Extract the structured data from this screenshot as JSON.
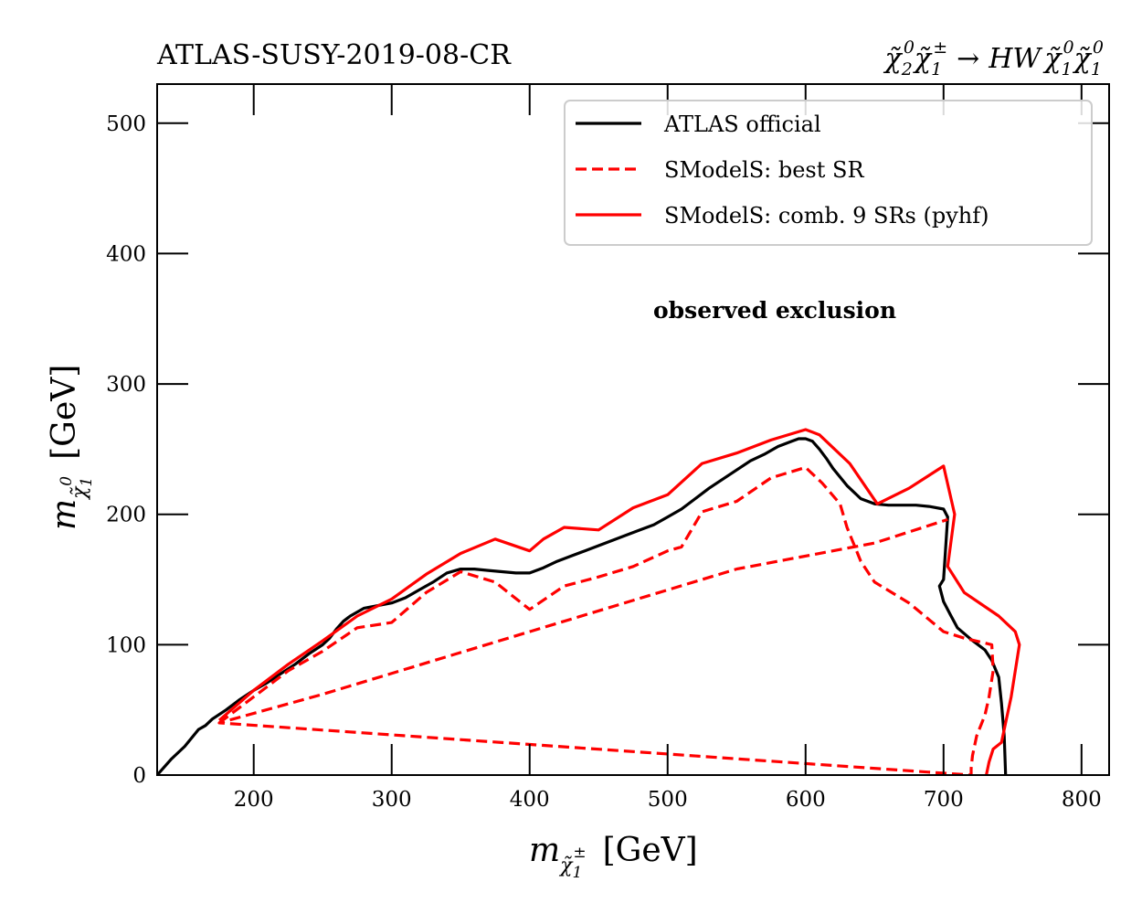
{
  "chart_data": {
    "type": "line",
    "title_left": "ATLAS-SUSY-2019-08-CR",
    "title_right": {
      "lhs_1": "χ̃",
      "lhs_1_sub": "2",
      "lhs_1_sup": "0",
      "lhs_2": "χ̃",
      "lhs_2_sub": "1",
      "lhs_2_sup": "±",
      "arrow": "→",
      "rhs_particles": "HW",
      "rhs_1": "χ̃",
      "rhs_1_sub": "1",
      "rhs_1_sup": "0",
      "rhs_2": "χ̃",
      "rhs_2_sub": "1",
      "rhs_2_sup": "0"
    },
    "xlabel": {
      "m": "m",
      "sub": "χ̃",
      "sub_sub": "1",
      "sup": "±",
      "unit": "[GeV]"
    },
    "ylabel": {
      "m": "m",
      "sub": "χ̃",
      "sub_sub": "1",
      "sup": "0",
      "unit": "[GeV]"
    },
    "xlim": [
      130,
      820
    ],
    "ylim": [
      0,
      530
    ],
    "xticks": [
      200,
      300,
      400,
      500,
      600,
      700,
      800
    ],
    "yticks": [
      0,
      100,
      200,
      300,
      400,
      500
    ],
    "annotation": "observed exclusion",
    "legend_position": "top-right",
    "series": [
      {
        "name": "ATLAS official",
        "color": "#000000",
        "style": "solid",
        "x": [
          130,
          140,
          150,
          160,
          165,
          170,
          180,
          190,
          200,
          210,
          220,
          230,
          240,
          250,
          255,
          260,
          265,
          270,
          280,
          290,
          300,
          310,
          320,
          330,
          340,
          350,
          360,
          370,
          380,
          390,
          400,
          410,
          420,
          430,
          440,
          450,
          460,
          470,
          480,
          490,
          500,
          510,
          520,
          530,
          540,
          550,
          560,
          570,
          580,
          590,
          595,
          600,
          605,
          610,
          615,
          620,
          630,
          640,
          650,
          660,
          670,
          680,
          690,
          700,
          703,
          700,
          697,
          700,
          705,
          710,
          720,
          730,
          735,
          740,
          742,
          744,
          745
        ],
        "y": [
          0,
          12,
          22,
          35,
          38,
          43,
          50,
          58,
          65,
          71,
          78,
          85,
          93,
          100,
          105,
          112,
          118,
          122,
          128,
          130,
          132,
          136,
          142,
          148,
          155,
          158,
          158,
          157,
          156,
          155,
          155,
          159,
          164,
          168,
          172,
          176,
          180,
          184,
          188,
          192,
          198,
          204,
          212,
          220,
          227,
          234,
          241,
          246,
          252,
          256,
          258,
          258,
          256,
          250,
          243,
          235,
          222,
          212,
          208,
          207,
          207,
          207,
          206,
          204,
          198,
          150,
          145,
          133,
          123,
          113,
          104,
          96,
          88,
          75,
          55,
          30,
          0
        ]
      },
      {
        "name": "SModelS: best SR",
        "color": "#ff0000",
        "style": "dashed",
        "x": [
          175,
          200,
          225,
          250,
          275,
          300,
          325,
          350,
          375,
          400,
          425,
          450,
          475,
          500,
          510,
          525,
          550,
          575,
          600,
          612,
          625,
          630,
          640,
          650,
          675,
          700,
          715,
          735,
          736,
          733,
          730,
          724,
          721,
          720,
          720,
          175,
          250,
          350,
          450,
          550,
          650,
          703
        ],
        "y": [
          40,
          60,
          80,
          95,
          113,
          117,
          140,
          156,
          148,
          127,
          145,
          152,
          160,
          172,
          175,
          202,
          210,
          228,
          236,
          224,
          208,
          190,
          164,
          148,
          132,
          110,
          105,
          100,
          80,
          60,
          46,
          30,
          15,
          5,
          0,
          40,
          62,
          94,
          126,
          158,
          178,
          196
        ]
      },
      {
        "name": "SModelS: comb. 9 SRs (pyhf)",
        "color": "#ff0000",
        "style": "solid",
        "x": [
          175,
          200,
          225,
          250,
          275,
          300,
          325,
          350,
          375,
          400,
          410,
          425,
          450,
          475,
          500,
          525,
          550,
          575,
          600,
          610,
          632,
          652,
          675,
          700,
          708,
          703,
          715,
          740,
          752,
          755,
          749,
          745,
          742,
          736,
          733,
          731
        ],
        "y": [
          42,
          65,
          85,
          103,
          122,
          135,
          154,
          170,
          181,
          172,
          181,
          190,
          188,
          205,
          215,
          239,
          247,
          257,
          265,
          261,
          239,
          208,
          220,
          237,
          200,
          160,
          140,
          122,
          110,
          100,
          60,
          40,
          25,
          20,
          10,
          0
        ]
      }
    ]
  }
}
